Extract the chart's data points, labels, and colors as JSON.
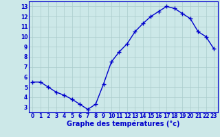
{
  "x": [
    0,
    1,
    2,
    3,
    4,
    5,
    6,
    7,
    8,
    9,
    10,
    11,
    12,
    13,
    14,
    15,
    16,
    17,
    18,
    19,
    20,
    21,
    22,
    23
  ],
  "y": [
    5.5,
    5.5,
    5.0,
    4.5,
    4.2,
    3.8,
    3.3,
    2.8,
    3.3,
    5.3,
    7.5,
    8.5,
    9.3,
    10.5,
    11.3,
    12.0,
    12.5,
    13.0,
    12.8,
    12.3,
    11.8,
    10.5,
    10.0,
    8.8
  ],
  "line_color": "#0000cc",
  "marker": "+",
  "marker_size": 4,
  "xlabel": "Graphe des températures (°c)",
  "xlabel_fontsize": 7,
  "background_color": "#cce8e8",
  "grid_color": "#aacccc",
  "ylim": [
    2.5,
    13.5
  ],
  "xlim": [
    -0.5,
    23.5
  ],
  "yticks": [
    3,
    4,
    5,
    6,
    7,
    8,
    9,
    10,
    11,
    12,
    13
  ],
  "xticks": [
    0,
    1,
    2,
    3,
    4,
    5,
    6,
    7,
    8,
    9,
    10,
    11,
    12,
    13,
    14,
    15,
    16,
    17,
    18,
    19,
    20,
    21,
    22,
    23
  ],
  "tick_fontsize": 5.5,
  "tick_color": "#0000cc",
  "axis_color": "#0000cc",
  "linewidth": 1.0,
  "marker_linewidth": 1.0
}
